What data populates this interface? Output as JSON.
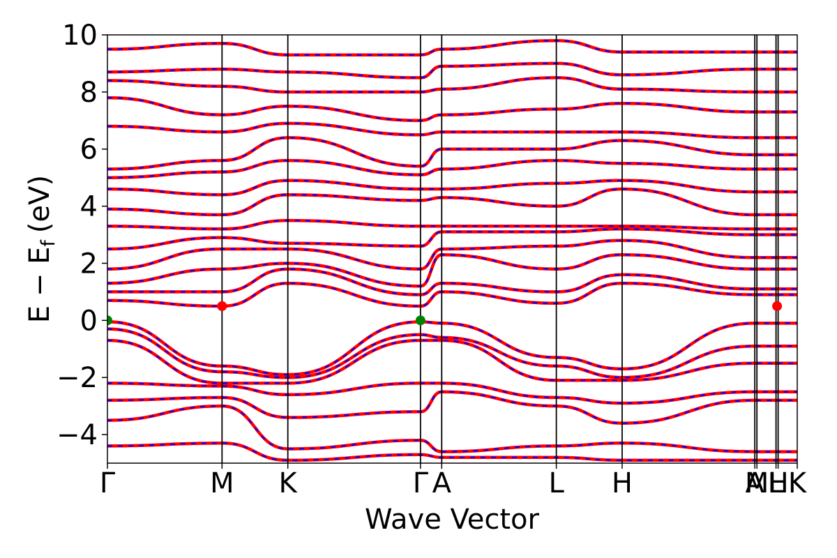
{
  "chart_data": {
    "type": "line",
    "title": "",
    "xlabel": "Wave Vector",
    "ylabel": "E − E",
    "ylabel_subscript": "f",
    "ylabel_unit": "(eV)",
    "ylim": [
      -5,
      10
    ],
    "y_ticks": [
      -4,
      -2,
      0,
      2,
      4,
      6,
      8,
      10
    ],
    "y_tick_labels": [
      "−4",
      "−2",
      "0",
      "2",
      "4",
      "6",
      "8",
      "10"
    ],
    "x_range": [
      0,
      6.5
    ],
    "high_symmetry_points": [
      {
        "label": "Γ",
        "x": 0.0
      },
      {
        "label": "M",
        "x": 1.08
      },
      {
        "label": "K",
        "x": 1.7
      },
      {
        "label": "Γ",
        "x": 2.95
      },
      {
        "label": "A",
        "x": 3.15
      },
      {
        "label": "L",
        "x": 4.23
      },
      {
        "label": "H",
        "x": 4.85
      },
      {
        "label": "A",
        "x": 6.1
      },
      {
        "label": "M",
        "x": 6.12
      },
      {
        "label": "L",
        "x": 6.3
      },
      {
        "label": "H",
        "x": 6.32
      },
      {
        "label": "K",
        "x": 6.5
      }
    ],
    "styles": {
      "line1": "#ff0000",
      "line2": "#0000ff",
      "vbm_marker": "#008000",
      "cbm_marker": "#ff0000"
    },
    "vbm_points": [
      [
        0.0,
        0.0
      ],
      [
        2.95,
        0.0
      ]
    ],
    "cbm_points": [
      [
        1.08,
        0.5
      ],
      [
        6.31,
        0.5
      ]
    ],
    "bands": [
      {
        "name": "",
        "values": [
          -0.05,
          -1.6,
          -1.9,
          -0.05,
          -0.1,
          -1.3,
          -1.7,
          -0.1
        ]
      },
      {
        "name": "",
        "values": [
          -0.3,
          -1.8,
          -2.0,
          -0.5,
          -0.6,
          -1.6,
          -2.0,
          -0.9
        ]
      },
      {
        "name": "",
        "values": [
          -0.7,
          -2.2,
          -2.2,
          -0.7,
          -0.7,
          -2.1,
          -2.1,
          -1.5
        ]
      },
      {
        "name": "",
        "values": [
          -2.2,
          -2.3,
          -2.6,
          -2.2,
          -2.2,
          -2.7,
          -2.9,
          -2.5
        ]
      },
      {
        "name": "",
        "values": [
          -2.8,
          -2.7,
          -3.4,
          -3.2,
          -2.5,
          -3.0,
          -3.6,
          -2.8
        ]
      },
      {
        "name": "",
        "values": [
          -3.5,
          -3.0,
          -4.5,
          -4.2,
          -4.6,
          -4.4,
          -4.3,
          -4.6
        ]
      },
      {
        "name": "",
        "values": [
          -4.4,
          -4.3,
          -4.9,
          -4.7,
          -4.8,
          -4.8,
          -4.9,
          -4.9
        ]
      },
      {
        "name": "",
        "values": [
          0.7,
          0.5,
          1.3,
          0.5,
          1.0,
          0.6,
          1.3,
          0.9
        ]
      },
      {
        "name": "",
        "values": [
          1.0,
          1.0,
          1.8,
          0.9,
          1.3,
          1.0,
          1.6,
          1.1
        ]
      },
      {
        "name": "",
        "values": [
          1.3,
          1.8,
          2.0,
          1.2,
          2.3,
          1.8,
          2.3,
          1.8
        ]
      },
      {
        "name": "",
        "values": [
          1.8,
          2.5,
          2.5,
          1.8,
          2.5,
          2.6,
          2.8,
          2.2
        ]
      },
      {
        "name": "",
        "values": [
          2.5,
          2.9,
          2.7,
          2.6,
          3.1,
          3.1,
          3.2,
          3.0
        ]
      },
      {
        "name": "",
        "values": [
          3.3,
          3.2,
          3.5,
          3.3,
          3.3,
          3.3,
          3.3,
          3.2
        ]
      },
      {
        "name": "",
        "values": [
          3.9,
          3.7,
          4.4,
          4.2,
          4.3,
          4.0,
          4.6,
          3.7
        ]
      },
      {
        "name": "",
        "values": [
          4.6,
          4.4,
          4.9,
          4.6,
          4.6,
          4.8,
          4.9,
          4.5
        ]
      },
      {
        "name": "",
        "values": [
          5.0,
          5.2,
          5.6,
          5.1,
          5.3,
          5.6,
          5.5,
          5.3
        ]
      },
      {
        "name": "",
        "values": [
          5.3,
          5.6,
          6.4,
          5.4,
          6.0,
          6.0,
          6.3,
          5.8
        ]
      },
      {
        "name": "",
        "values": [
          6.8,
          6.6,
          6.9,
          6.5,
          6.6,
          6.6,
          6.6,
          6.4
        ]
      },
      {
        "name": "",
        "values": [
          7.8,
          7.2,
          7.5,
          7.0,
          7.2,
          7.4,
          7.6,
          7.3
        ]
      },
      {
        "name": "",
        "values": [
          8.4,
          8.2,
          8.0,
          8.0,
          8.1,
          8.5,
          8.1,
          8.0
        ]
      },
      {
        "name": "",
        "values": [
          8.7,
          8.8,
          8.7,
          8.5,
          8.9,
          9.0,
          8.6,
          8.8
        ]
      },
      {
        "name": "",
        "values": [
          9.5,
          9.7,
          9.3,
          9.3,
          9.5,
          9.8,
          9.4,
          9.4
        ]
      }
    ]
  }
}
